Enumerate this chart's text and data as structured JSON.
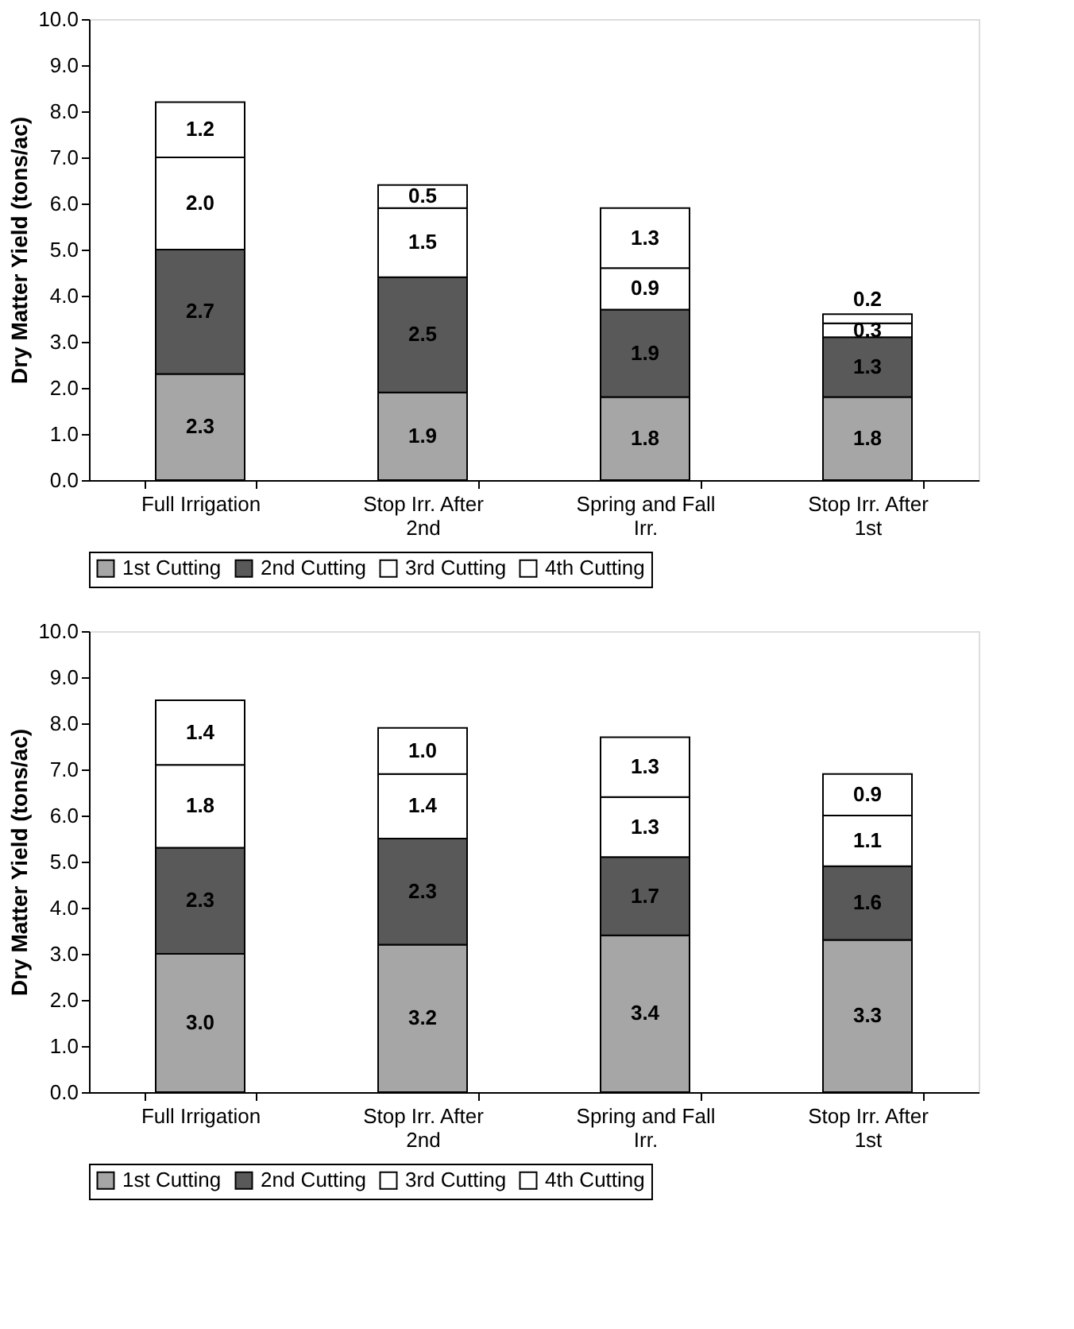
{
  "chart_data": [
    {
      "type": "bar",
      "stacked": true,
      "ylabel": "Dry Matter Yield (tons/ac)",
      "categories": [
        "Full Irrigation",
        "Stop Irr. After 2nd",
        "Spring and Fall Irr.",
        "Stop Irr. After 1st"
      ],
      "series": [
        {
          "name": "1st Cutting",
          "color": "#a6a6a6",
          "values": [
            2.3,
            1.9,
            1.8,
            1.8
          ]
        },
        {
          "name": "2nd Cutting",
          "color": "#595959",
          "values": [
            2.7,
            2.5,
            1.9,
            1.3
          ]
        },
        {
          "name": "3rd Cutting",
          "color": "#ffffff",
          "values": [
            2.0,
            1.5,
            0.9,
            0.3
          ]
        },
        {
          "name": "4th Cutting",
          "color": "#ffffff",
          "values": [
            1.2,
            0.5,
            1.3,
            0.2
          ]
        }
      ],
      "ylim": [
        0,
        10
      ],
      "yticks": [
        {
          "value": 0,
          "label": "0.0"
        },
        {
          "value": 1,
          "label": "1.0"
        },
        {
          "value": 2,
          "label": "2.0"
        },
        {
          "value": 3,
          "label": "3.0"
        },
        {
          "value": 4,
          "label": "4.0"
        },
        {
          "value": 5,
          "label": "5.0"
        },
        {
          "value": 6,
          "label": "6.0"
        },
        {
          "value": 7,
          "label": "7.0"
        },
        {
          "value": 8,
          "label": "8.0"
        },
        {
          "value": 9,
          "label": "9.0"
        },
        {
          "value": 10,
          "label": "10.0"
        }
      ],
      "value_labels": [
        [
          "2.3",
          "1.9",
          "1.8",
          "1.8"
        ],
        [
          "2.7",
          "2.5",
          "1.9",
          "1.3"
        ],
        [
          "2.0",
          "1.5",
          "0.9",
          "0.3"
        ],
        [
          "1.2",
          "0.5",
          "1.3",
          "0.2"
        ]
      ],
      "legend": "bottom",
      "grid": false
    },
    {
      "type": "bar",
      "stacked": true,
      "ylabel": "Dry Matter Yield (tons/ac)",
      "categories": [
        "Full Irrigation",
        "Stop Irr. After 2nd",
        "Spring and Fall Irr.",
        "Stop Irr. After 1st"
      ],
      "series": [
        {
          "name": "1st Cutting",
          "color": "#a6a6a6",
          "values": [
            3.0,
            3.2,
            3.4,
            3.3
          ]
        },
        {
          "name": "2nd Cutting",
          "color": "#595959",
          "values": [
            2.3,
            2.3,
            1.7,
            1.6
          ]
        },
        {
          "name": "3rd Cutting",
          "color": "#ffffff",
          "values": [
            1.8,
            1.4,
            1.3,
            1.1
          ]
        },
        {
          "name": "4th Cutting",
          "color": "#ffffff",
          "values": [
            1.4,
            1.0,
            1.3,
            0.9
          ]
        }
      ],
      "ylim": [
        0,
        10
      ],
      "yticks": [
        {
          "value": 0,
          "label": "0.0"
        },
        {
          "value": 1,
          "label": "1.0"
        },
        {
          "value": 2,
          "label": "2.0"
        },
        {
          "value": 3,
          "label": "3.0"
        },
        {
          "value": 4,
          "label": "4.0"
        },
        {
          "value": 5,
          "label": "5.0"
        },
        {
          "value": 6,
          "label": "6.0"
        },
        {
          "value": 7,
          "label": "7.0"
        },
        {
          "value": 8,
          "label": "8.0"
        },
        {
          "value": 9,
          "label": "9.0"
        },
        {
          "value": 10,
          "label": "10.0"
        }
      ],
      "value_labels": [
        [
          "3.0",
          "3.2",
          "3.4",
          "3.3"
        ],
        [
          "2.3",
          "2.3",
          "1.7",
          "1.6"
        ],
        [
          "1.8",
          "1.4",
          "1.3",
          "1.1"
        ],
        [
          "1.4",
          "1.0",
          "1.3",
          "0.9"
        ]
      ],
      "legend": "bottom",
      "grid": false
    }
  ]
}
